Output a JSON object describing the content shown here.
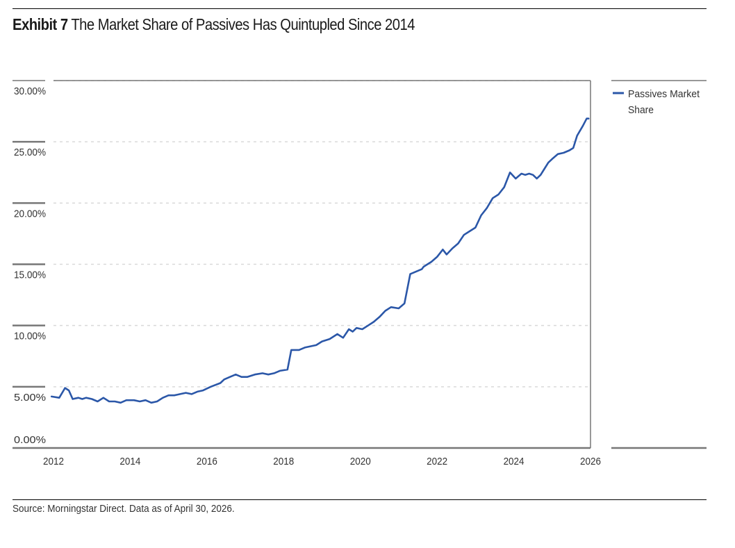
{
  "header": {
    "exhibit_label": "Exhibit 7",
    "title": "The Market Share of Passives Has Quintupled Since 2014"
  },
  "footer": {
    "source": "Source: Morningstar Direct. Data as of April 30, 2026."
  },
  "chart_data": {
    "type": "line",
    "title": "Exhibit 7 The Market Share of Passives Has Quintupled Since 2014",
    "xlabel": "",
    "ylabel": "",
    "xlim": [
      2012,
      2026
    ],
    "ylim": [
      0,
      30
    ],
    "y_ticks": [
      0,
      5,
      10,
      15,
      20,
      25,
      30
    ],
    "y_tick_labels": [
      "0.00%",
      "5.00%",
      "10.00%",
      "15.00%",
      "20.00%",
      "25.00%",
      "30.00%"
    ],
    "x_ticks": [
      2012,
      2014,
      2016,
      2018,
      2020,
      2022,
      2024,
      2026
    ],
    "x_tick_labels": [
      "2012",
      "2014",
      "2016",
      "2018",
      "2020",
      "2022",
      "2024",
      "2026"
    ],
    "grid": "horizontal dashed",
    "legend_position": "right",
    "colors": {
      "series": "#2b57a8",
      "grid": "#d9d9d9",
      "axis": "#777777"
    },
    "series": [
      {
        "name": "Passives Market Share",
        "x": [
          2011.95,
          2012.15,
          2012.3,
          2012.4,
          2012.5,
          2012.65,
          2012.75,
          2012.85,
          2013.0,
          2013.15,
          2013.3,
          2013.45,
          2013.6,
          2013.75,
          2013.9,
          2014.1,
          2014.25,
          2014.4,
          2014.55,
          2014.7,
          2014.85,
          2015.0,
          2015.15,
          2015.3,
          2015.45,
          2015.6,
          2015.75,
          2015.9,
          2016.1,
          2016.35,
          2016.45,
          2016.6,
          2016.75,
          2016.9,
          2017.05,
          2017.25,
          2017.45,
          2017.6,
          2017.75,
          2017.9,
          2018.1,
          2018.2,
          2018.25,
          2018.4,
          2018.55,
          2018.7,
          2018.85,
          2019.0,
          2019.2,
          2019.4,
          2019.55,
          2019.7,
          2019.8,
          2019.9,
          2020.05,
          2020.2,
          2020.35,
          2020.5,
          2020.65,
          2020.8,
          2021.0,
          2021.15,
          2021.3,
          2021.45,
          2021.6,
          2021.65,
          2021.75,
          2021.85,
          2022.0,
          2022.15,
          2022.25,
          2022.4,
          2022.55,
          2022.7,
          2022.85,
          2023.0,
          2023.15,
          2023.3,
          2023.45,
          2023.6,
          2023.75,
          2023.9,
          2024.05,
          2024.2,
          2024.3,
          2024.4,
          2024.5,
          2024.6,
          2024.7,
          2024.8,
          2024.9,
          2025.0,
          2025.15,
          2025.3,
          2025.45,
          2025.55,
          2025.65,
          2025.8,
          2025.9,
          2025.95
        ],
        "values": [
          4.2,
          4.1,
          4.9,
          4.7,
          4.0,
          4.1,
          4.0,
          4.1,
          4.0,
          3.8,
          4.1,
          3.8,
          3.8,
          3.7,
          3.9,
          3.9,
          3.8,
          3.9,
          3.7,
          3.8,
          4.1,
          4.3,
          4.3,
          4.4,
          4.5,
          4.4,
          4.6,
          4.7,
          5.0,
          5.3,
          5.6,
          5.8,
          6.0,
          5.8,
          5.8,
          6.0,
          6.1,
          6.0,
          6.1,
          6.3,
          6.4,
          8.0,
          8.0,
          8.0,
          8.2,
          8.3,
          8.4,
          8.7,
          8.9,
          9.3,
          9.0,
          9.7,
          9.5,
          9.8,
          9.7,
          10.0,
          10.3,
          10.7,
          11.2,
          11.5,
          11.4,
          11.8,
          14.2,
          14.4,
          14.6,
          14.8,
          15.0,
          15.2,
          15.6,
          16.2,
          15.8,
          16.3,
          16.7,
          17.4,
          17.7,
          18.0,
          19.0,
          19.6,
          20.4,
          20.7,
          21.3,
          22.5,
          22.0,
          22.4,
          22.3,
          22.4,
          22.3,
          22.0,
          22.3,
          22.8,
          23.3,
          23.6,
          24.0,
          24.1,
          24.3,
          24.5,
          25.5,
          26.3,
          26.9,
          26.9
        ]
      }
    ]
  }
}
